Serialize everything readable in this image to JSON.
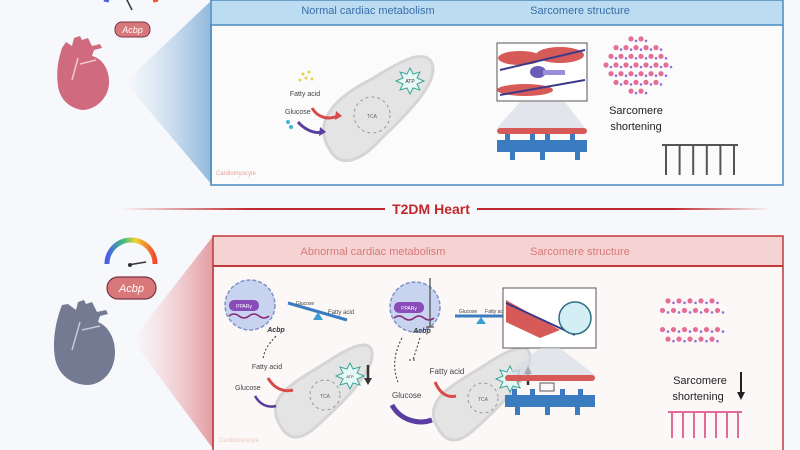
{
  "normal": {
    "header_left": "Normal cardiac metabolism",
    "header_right": "Sarcomere structure",
    "gene_label": "Acbp",
    "fatty_acid": "Fatty acid",
    "glucose": "Glucose",
    "atp": "ATP",
    "tca": "TCA",
    "sarcomere_label_1": "Sarcomere",
    "sarcomere_label_2": "shortening",
    "cell_label": "Cardiomyocyte"
  },
  "divider": {
    "title": "T2DM Heart"
  },
  "t2dm": {
    "header_left": "Abnormal cardiac metabolism",
    "header_right": "Sarcomere structure",
    "gene_label": "Acbp",
    "pparg": "PPARγ",
    "acbp_1": "Acbp",
    "acbp_2": "Acbp",
    "seesaw_glucose_1": "Glucose",
    "seesaw_fatty_1": "Fatty acid",
    "seesaw_glucose_2": "Glucose",
    "seesaw_fatty_2": "Fatty acid",
    "fatty_acid_1": "Fatty acid",
    "glucose_1": "Glucose",
    "fatty_acid_2": "Fatty acid",
    "glucose_2": "Glucose",
    "atp": "ATP",
    "tca": "TCA",
    "sarcomere_label_1": "Sarcomere",
    "sarcomere_label_2": "shortening",
    "cell_label": "Cardiomyocyte"
  },
  "colors": {
    "normal_accent": "#4a8ac0",
    "normal_header_bg": "#bcdcf2",
    "normal_header_text": "#3a6ea8",
    "t2dm_accent": "#c0393b",
    "t2dm_header_bg": "#f6d3d3",
    "t2dm_header_text": "#d9777a",
    "healthy_heart": "#d06a7e",
    "diseased_heart": "#737a91"
  }
}
